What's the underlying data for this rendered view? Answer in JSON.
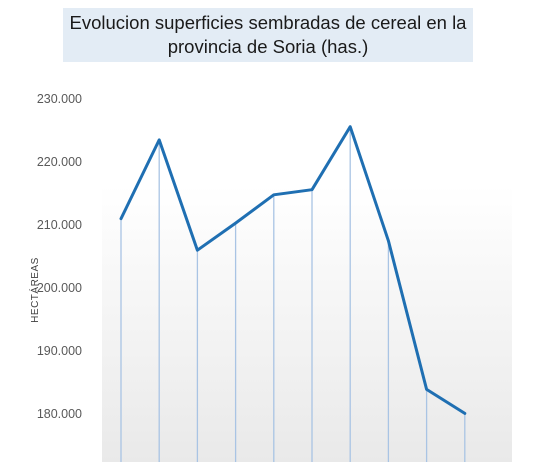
{
  "chart_data": {
    "type": "line",
    "title_lines": [
      "Evolucion superficies sembradas de cereal en la",
      "provincia de Soria (has.)"
    ],
    "ylabel": "HECTÁREAS",
    "xlabel": "",
    "y_tick_labels": [
      "230.000",
      "220.000",
      "210.000",
      "200.000",
      "190.000",
      "180.000"
    ],
    "y_ticks": [
      230000,
      220000,
      210000,
      200000,
      190000,
      180000
    ],
    "ylim": [
      175000,
      230000
    ],
    "series": [
      {
        "values": [
          211000,
          223500,
          206000,
          210300,
          214800,
          215600,
          225600,
          207500,
          183900,
          180100
        ],
        "color": "#1f6fb2"
      }
    ],
    "drop_line_color": "#a9c4e4",
    "grid": false,
    "legend": "none"
  }
}
